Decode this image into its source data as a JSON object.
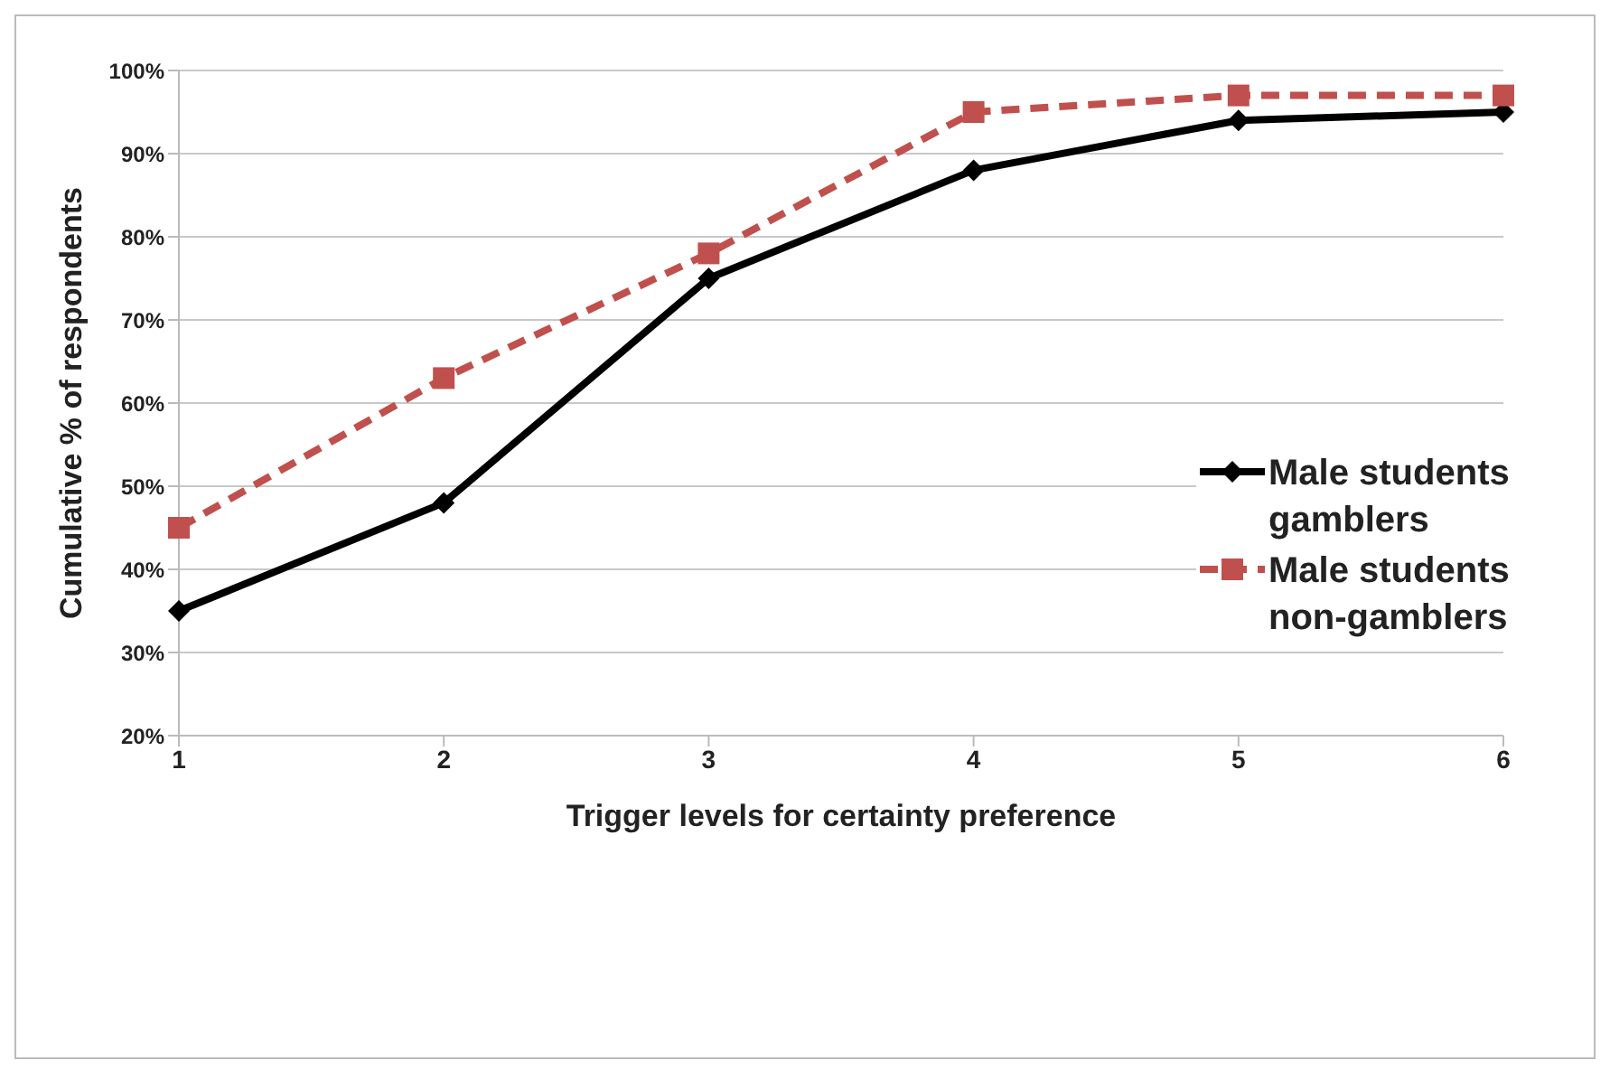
{
  "chart_data": {
    "type": "line",
    "xlabel": "Trigger levels for certainty preference",
    "ylabel": "Cumulative  % of  respondents",
    "categories": [
      "1",
      "2",
      "3",
      "4",
      "5",
      "6"
    ],
    "series": [
      {
        "name": "Male students gamblers",
        "color": "#000000",
        "marker": "diamond",
        "line_style": "solid",
        "values": [
          35,
          48,
          75,
          88,
          94,
          95
        ]
      },
      {
        "name": "Male students non-gamblers",
        "color": "#c0504d",
        "marker": "square",
        "line_style": "dashed",
        "values": [
          45,
          63,
          78,
          95,
          97,
          97
        ]
      }
    ],
    "ylim": [
      20,
      100
    ],
    "yticks": [
      {
        "value": 20,
        "label": "20%"
      },
      {
        "value": 30,
        "label": "30%"
      },
      {
        "value": 40,
        "label": "40%"
      },
      {
        "value": 50,
        "label": "50%"
      },
      {
        "value": 60,
        "label": "60%"
      },
      {
        "value": 70,
        "label": "70%"
      },
      {
        "value": 80,
        "label": "80%"
      },
      {
        "value": 90,
        "label": "90%"
      },
      {
        "value": 100,
        "label": "100%"
      }
    ],
    "grid": "y",
    "legend": "right"
  }
}
